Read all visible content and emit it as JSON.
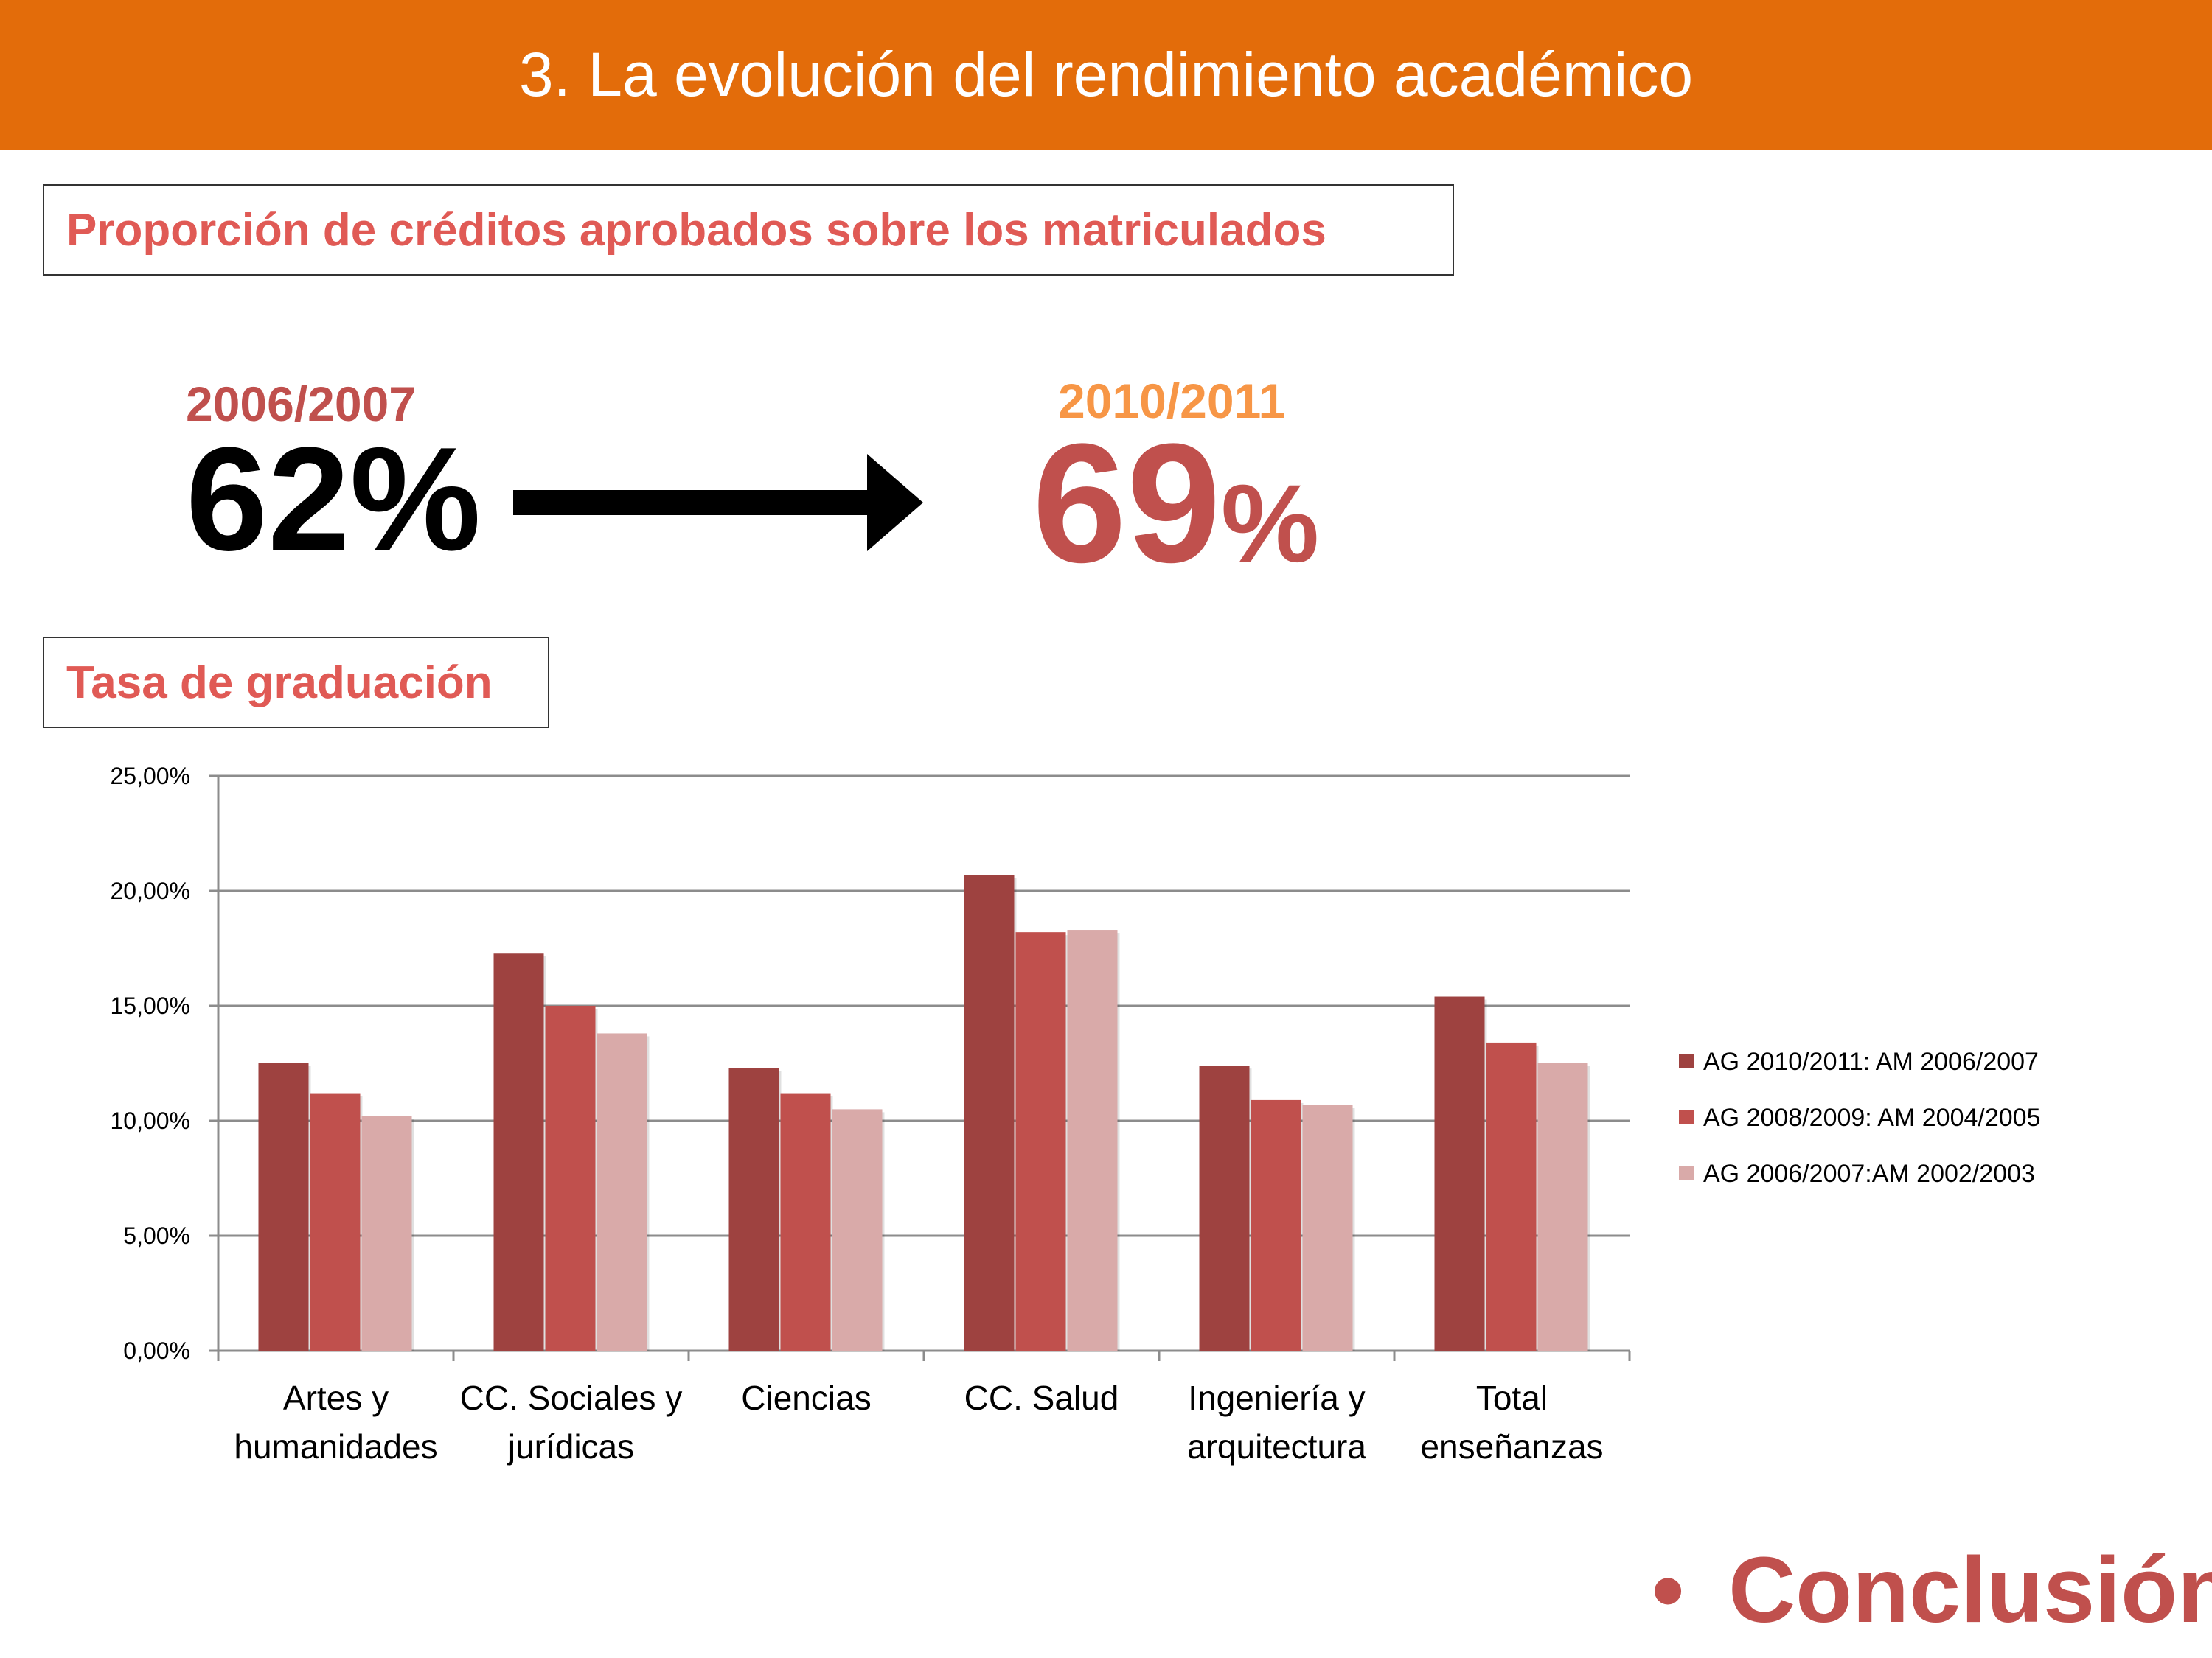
{
  "header": {
    "title": "3. La evolución del rendimiento académico"
  },
  "section1": {
    "title": "Proporción de créditos aprobados sobre los matriculados",
    "from_year": "2006/2007",
    "from_value": "62%",
    "to_year": "2010/2011",
    "to_value": "69",
    "to_unit": "%"
  },
  "section2": {
    "title": "Tasa de graduación"
  },
  "chart_data": {
    "type": "bar",
    "title": "Tasa de graduación",
    "categories": [
      [
        "Artes y",
        "humanidades"
      ],
      [
        "CC. Sociales y",
        "jurídicas"
      ],
      [
        "Ciencias"
      ],
      [
        "CC. Salud"
      ],
      [
        "Ingeniería y",
        "arquitectura"
      ],
      [
        "Total",
        "enseñanzas"
      ]
    ],
    "series": [
      {
        "name": "AG 2010/2011: AM 2006/2007",
        "color": "#9e4240",
        "values": [
          12.5,
          17.3,
          12.3,
          20.7,
          12.4,
          15.4
        ]
      },
      {
        "name": "AG 2008/2009: AM 2004/2005",
        "color": "#c0504d",
        "values": [
          11.2,
          15.0,
          11.2,
          18.2,
          10.9,
          13.4
        ]
      },
      {
        "name": "AG 2006/2007:AM 2002/2003",
        "color": "#d9aaa9",
        "values": [
          10.2,
          13.8,
          10.5,
          18.3,
          10.7,
          12.5
        ]
      }
    ],
    "ylim": [
      0,
      25
    ],
    "yticks": [
      "0,00%",
      "5,00%",
      "10,00%",
      "15,00%",
      "20,00%",
      "25,00%"
    ],
    "ytick_values": [
      0,
      5,
      10,
      15,
      20,
      25
    ],
    "grid": true,
    "legend": "right"
  },
  "footer": {
    "bullet": "•",
    "text": "Conclusión"
  },
  "colors": {
    "accent": "#e36c0a",
    "brand_red": "#c0504d",
    "orange": "#f79646"
  }
}
